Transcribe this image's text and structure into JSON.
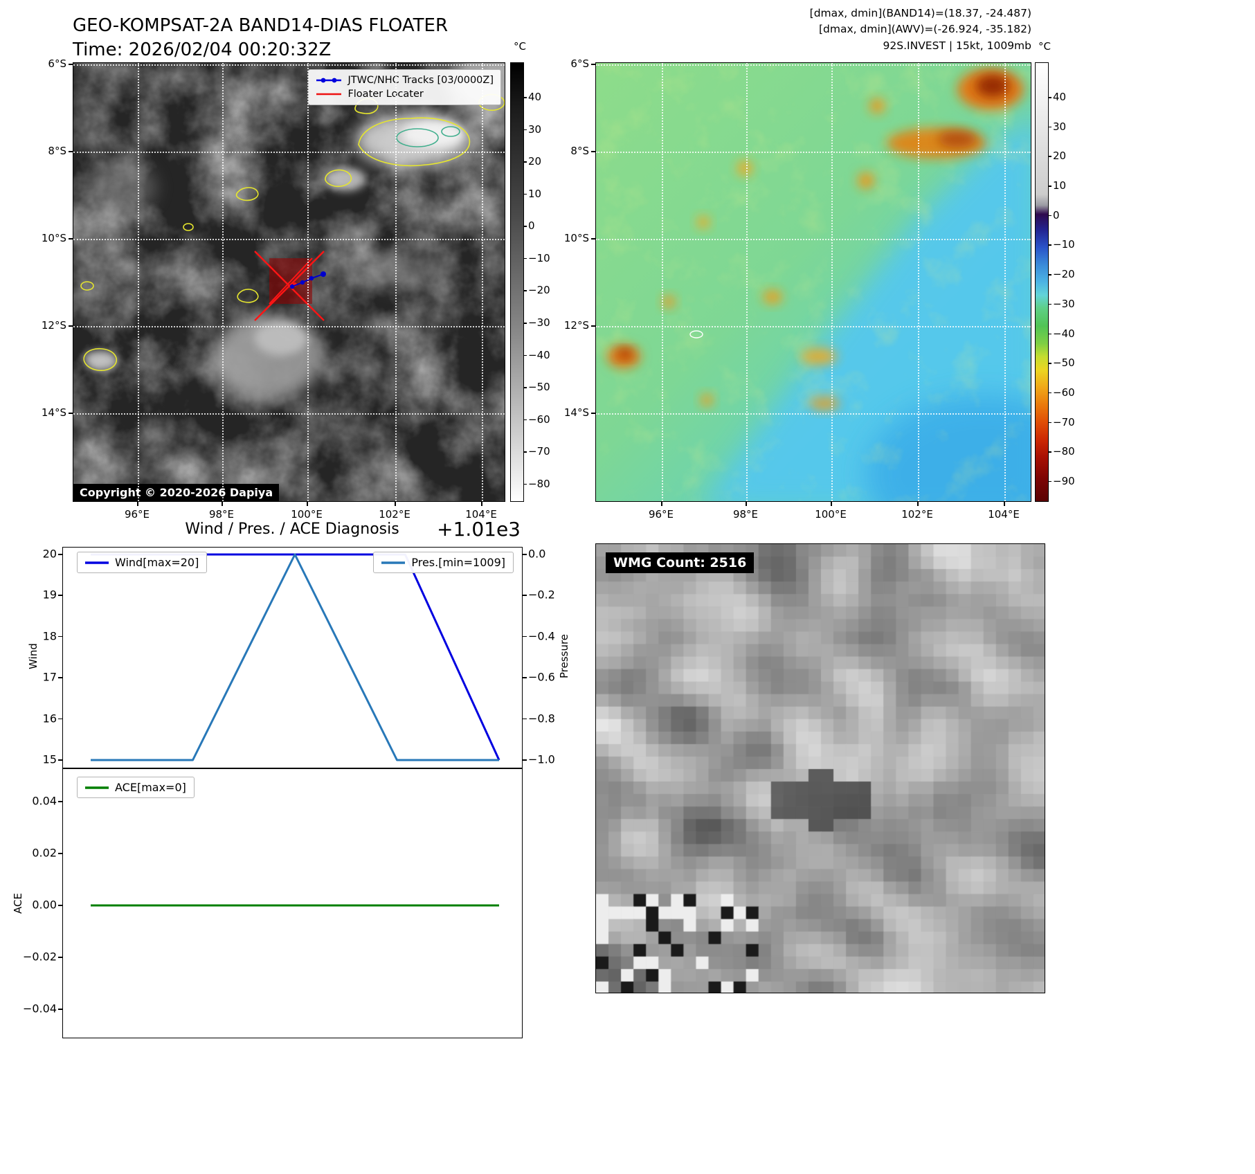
{
  "band14": {
    "title1": "GEO-KOMPSAT-2A BAND14-DIAS FLOATER",
    "title2": "Time: 2026/02/04 00:20:32Z",
    "legend": [
      {
        "label": "JTWC/NHC Tracks [03/0000Z]",
        "color": "#0000dd"
      },
      {
        "label": "Floater Locater",
        "color": "#ee1111"
      }
    ],
    "copyright": "Copyright © 2020-2026 Dapiya",
    "x_ticks": [
      "96°E",
      "98°E",
      "100°E",
      "102°E",
      "104°E"
    ],
    "y_ticks": [
      "6°S",
      "8°S",
      "10°S",
      "12°S",
      "14°S"
    ],
    "colorbar": {
      "unit": "°C",
      "ticks": [
        "40",
        "30",
        "20",
        "10",
        "0",
        "−10",
        "−20",
        "−30",
        "−40",
        "−50",
        "−60",
        "−70",
        "−80"
      ]
    }
  },
  "awv": {
    "annotations": [
      "[dmax, dmin](BAND14)=(18.37, -24.487)",
      "[dmax, dmin](AWV)=(-26.924, -35.182)",
      "92S.INVEST | 15kt, 1009mb"
    ],
    "x_ticks": [
      "96°E",
      "98°E",
      "100°E",
      "102°E",
      "104°E"
    ],
    "y_ticks": [
      "6°S",
      "8°S",
      "10°S",
      "12°S",
      "14°S"
    ],
    "colorbar": {
      "unit": "°C",
      "ticks": [
        "40",
        "30",
        "20",
        "10",
        "0",
        "−10",
        "−20",
        "−30",
        "−40",
        "−50",
        "−60",
        "−70",
        "−80",
        "−90"
      ]
    }
  },
  "wmg": {
    "label": "WMG Count: 2516"
  },
  "chart_data": [
    {
      "type": "line",
      "title": "Wind / Pres. / ACE Diagnosis",
      "offset_text": "+1.01e3",
      "series": [
        {
          "name": "Wind[max=20]",
          "color": "#0000e0",
          "axis": "wind",
          "points": [
            [
              0,
              20
            ],
            [
              0.77,
              20
            ],
            [
              1,
              15
            ]
          ]
        },
        {
          "name": "Pres.[min=1009]",
          "color": "#2878b8",
          "axis": "pressure",
          "points": [
            [
              0,
              1009
            ],
            [
              0.25,
              1009
            ],
            [
              0.5,
              1010
            ],
            [
              0.75,
              1009
            ],
            [
              1,
              1009
            ]
          ]
        }
      ],
      "wind_axis": {
        "label": "Wind",
        "tick_labels": [
          "20",
          "19",
          "18",
          "17",
          "16",
          "15"
        ],
        "tick_values": [
          20,
          19,
          18,
          17,
          16,
          15
        ],
        "range": [
          15,
          20
        ]
      },
      "pressure_axis": {
        "label": "Pressure",
        "tick_labels": [
          "0.0",
          "−0.2",
          "−0.4",
          "−0.6",
          "−0.8",
          "−1.0"
        ],
        "tick_values": [
          0,
          -0.2,
          -0.4,
          -0.6,
          -0.8,
          -1.0
        ],
        "range": [
          1009,
          1010
        ]
      },
      "legend_position": "upper left / upper right"
    },
    {
      "type": "line",
      "series": [
        {
          "name": "ACE[max=0]",
          "color": "#007f00",
          "axis": "ace",
          "points": [
            [
              0,
              0
            ],
            [
              1,
              0
            ]
          ]
        }
      ],
      "ace_axis": {
        "label": "ACE",
        "tick_labels": [
          "0.04",
          "0.02",
          "0.00",
          "−0.02",
          "−0.04"
        ],
        "tick_values": [
          0.04,
          0.02,
          0,
          -0.02,
          -0.04
        ],
        "range": [
          -0.05,
          0.05
        ]
      }
    }
  ]
}
